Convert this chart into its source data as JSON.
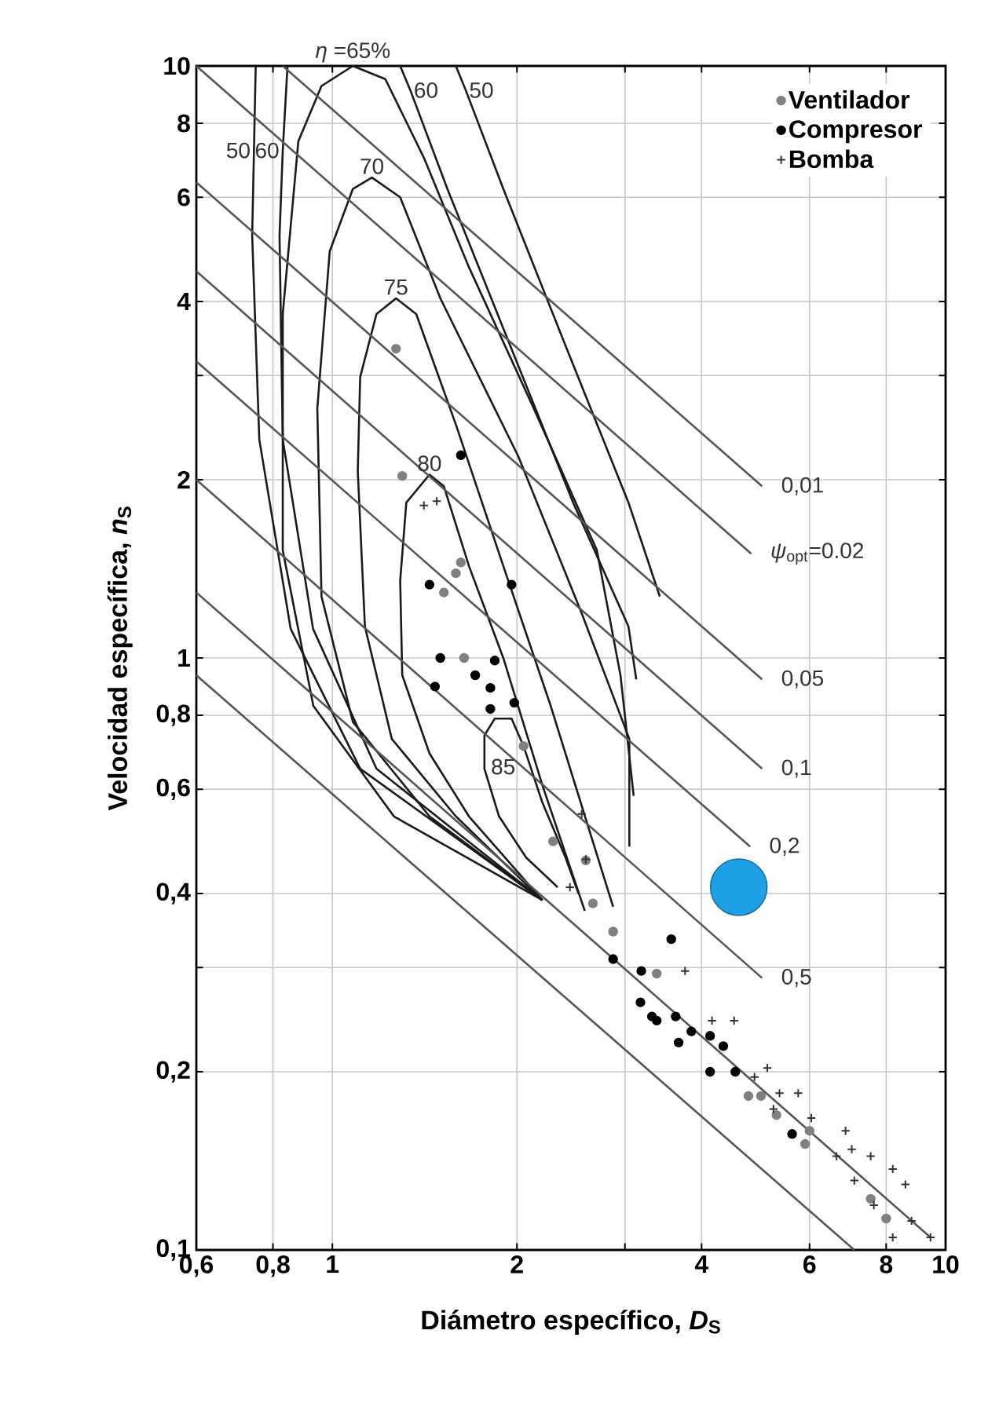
{
  "chart_data": {
    "type": "scatter",
    "xlabel": "Diámetro específico, *D*$_{S}$",
    "ylabel": "Velocidad específica, *n*$_{S}$",
    "log": "xy",
    "grid": true,
    "legend": "top right",
    "xlim": [
      0.6,
      10
    ],
    "ylim": [
      0.1,
      10
    ],
    "xticks": [
      {
        "value": 0.6,
        "label": "0,6"
      },
      {
        "value": 0.8,
        "label": "0,8"
      },
      1,
      2,
      {
        "value": 3,
        "label": null
      },
      4,
      6,
      8,
      10
    ],
    "yticks": [
      {
        "value": 0.1,
        "label": "0,1"
      },
      {
        "value": 0.2,
        "label": "0,2"
      },
      {
        "value": 0.3,
        "label": null
      },
      {
        "value": 0.4,
        "label": "0,4"
      },
      {
        "value": 0.6,
        "label": "0,6"
      },
      {
        "value": 0.8,
        "label": "0,8"
      },
      1,
      2,
      {
        "value": 3,
        "label": null
      },
      4,
      6,
      8,
      10
    ],
    "series": [
      {
        "type": "line",
        "color": "#1a1a1a",
        "marker": "none",
        "line_style": "solid",
        "x": [
          2.2,
          1.11,
          0.855,
          0.76,
          0.74,
          0.745,
          0.75
        ],
        "values": [
          0.39,
          0.65,
          1.12,
          2.34,
          5.17,
          7.2,
          10
        ]
      },
      {
        "type": "line",
        "color": "#1a1a1a",
        "marker": "none",
        "line_style": "solid",
        "x": [
          1.59,
          1.65,
          1.9,
          2.4,
          3.04,
          3.42
        ],
        "values": [
          10,
          9.1,
          6.2,
          3.37,
          1.83,
          1.27
        ]
      },
      {
        "type": "line",
        "color": "#1a1a1a",
        "marker": "none",
        "line_style": "solid",
        "x": [
          2.2,
          1.18,
          0.93,
          0.83,
          0.82,
          0.83,
          0.845
        ],
        "values": [
          0.39,
          0.65,
          1.12,
          2.34,
          5.17,
          7.2,
          10
        ]
      },
      {
        "type": "line",
        "color": "#1a1a1a",
        "marker": "none",
        "line_style": "solid",
        "x": [
          1.29,
          1.34,
          1.54,
          1.95,
          2.47,
          3.04,
          3.13
        ],
        "values": [
          10,
          9.1,
          6.2,
          3.37,
          1.83,
          1.13,
          0.92
        ]
      },
      {
        "type": "line",
        "color": "#1a1a1a",
        "marker": "none",
        "line_style": "solid",
        "x": [
          2.2,
          1.26,
          0.931,
          0.83,
          0.83,
          0.88,
          0.96,
          1.08,
          1.22,
          1.41,
          1.67,
          2.13,
          2.7,
          2.95,
          3.1
        ],
        "values": [
          0.39,
          0.54,
          0.83,
          1.52,
          3.81,
          7.46,
          9.25,
          10,
          9.5,
          7.0,
          4.57,
          2.64,
          1.52,
          0.935,
          0.585
        ]
      },
      {
        "type": "line",
        "color": "#1a1a1a",
        "marker": "none",
        "line_style": "solid",
        "x": [
          2.2,
          1.44,
          1.08,
          0.96,
          0.945,
          0.99,
          1.08,
          1.16,
          1.29,
          1.5,
          2.01,
          2.55,
          3.05,
          3.05
        ],
        "values": [
          0.39,
          0.54,
          0.78,
          1.27,
          2.64,
          4.86,
          6.2,
          6.48,
          6.0,
          4.05,
          2.19,
          1.19,
          0.73,
          0.48
        ]
      },
      {
        "type": "line",
        "color": "#1a1a1a",
        "marker": "none",
        "line_style": "solid",
        "x": [
          2.2,
          1.59,
          1.25,
          1.13,
          1.1,
          1.11,
          1.18,
          1.27,
          1.37,
          1.59,
          1.9,
          2.27,
          2.63,
          2.87
        ],
        "values": [
          0.39,
          0.54,
          0.73,
          1.13,
          2.07,
          2.98,
          3.81,
          4.05,
          3.81,
          2.48,
          1.43,
          0.83,
          0.508,
          0.38
        ]
      },
      {
        "type": "line",
        "color": "#1a1a1a",
        "marker": "none",
        "line_style": "solid",
        "x": [
          2.2,
          1.67,
          1.44,
          1.3,
          1.29,
          1.32,
          1.44,
          1.52,
          1.67,
          1.9,
          2.2,
          2.58
        ],
        "values": [
          0.39,
          0.54,
          0.69,
          0.935,
          1.35,
          1.83,
          2.04,
          1.95,
          1.43,
          1.0,
          0.61,
          0.374
        ]
      },
      {
        "type": "line",
        "color": "#1a1a1a",
        "marker": "none",
        "line_style": "solid",
        "x": [
          2.33,
          2.07,
          1.87,
          1.77,
          1.77,
          1.84,
          1.96,
          2.05,
          2.2,
          2.4,
          2.52
        ],
        "values": [
          0.41,
          0.46,
          0.54,
          0.65,
          0.74,
          0.79,
          0.79,
          0.71,
          0.57,
          0.46,
          0.4
        ]
      },
      {
        "type": "line",
        "color": "#555555",
        "marker": "none",
        "line_style": "solid",
        "x": [
          0.83,
          5.02
        ],
        "values": [
          10,
          1.95
        ]
      },
      {
        "type": "line",
        "color": "#555555",
        "marker": "none",
        "line_style": "solid",
        "x": [
          0.6,
          4.82
        ],
        "values": [
          10,
          1.5
        ]
      },
      {
        "type": "line",
        "color": "#555555",
        "marker": "none",
        "line_style": "solid",
        "x": [
          0.6,
          5.02
        ],
        "values": [
          6.36,
          0.92
        ]
      },
      {
        "type": "line",
        "color": "#555555",
        "marker": "none",
        "line_style": "solid",
        "x": [
          0.6,
          5.02
        ],
        "values": [
          4.5,
          0.65
        ]
      },
      {
        "type": "line",
        "color": "#555555",
        "marker": "none",
        "line_style": "solid",
        "x": [
          0.6,
          4.8
        ],
        "values": [
          3.17,
          0.48
        ]
      },
      {
        "type": "line",
        "color": "#555555",
        "marker": "none",
        "line_style": "solid",
        "x": [
          0.6,
          5.02
        ],
        "values": [
          2.0,
          0.288
        ]
      },
      {
        "type": "line",
        "color": "#555555",
        "marker": "none",
        "line_style": "solid",
        "x": [
          0.6,
          9.45
        ],
        "values": [
          1.29,
          0.105
        ]
      },
      {
        "type": "line",
        "color": "#555555",
        "marker": "none",
        "line_style": "solid",
        "x": [
          0.6,
          7.1
        ],
        "values": [
          0.935,
          0.1
        ]
      },
      {
        "name": "Ventilador",
        "color": "#808080",
        "marker": "circle",
        "x": [
          1.27,
          1.3,
          1.62,
          1.59,
          1.52,
          1.64,
          2.05,
          2.29,
          2.59,
          2.66,
          2.87,
          3.38,
          4.77,
          5.0,
          5.3,
          5.9,
          6.0,
          7.55,
          8.0
        ],
        "values": [
          3.33,
          2.03,
          1.45,
          1.39,
          1.29,
          1.0,
          0.71,
          0.49,
          0.455,
          0.385,
          0.345,
          0.293,
          0.182,
          0.182,
          0.169,
          0.151,
          0.159,
          0.122,
          0.113
        ]
      },
      {
        "name": "Compresor",
        "color": "#000000",
        "marker": "circle",
        "x": [
          1.62,
          1.44,
          1.96,
          1.5,
          1.84,
          1.71,
          1.47,
          1.81,
          1.98,
          1.81,
          2.87,
          3.57,
          3.19,
          3.18,
          3.32,
          3.63,
          3.85,
          3.67,
          4.13,
          4.34,
          4.13,
          4.54,
          5.62,
          3.38
        ],
        "values": [
          2.2,
          1.33,
          1.33,
          1.0,
          0.99,
          0.935,
          0.895,
          0.89,
          0.84,
          0.82,
          0.31,
          0.335,
          0.296,
          0.262,
          0.248,
          0.248,
          0.234,
          0.224,
          0.23,
          0.221,
          0.2,
          0.2,
          0.157,
          0.244
        ]
      },
      {
        "name": "Bomba",
        "color": "#333333",
        "marker": "cross",
        "x": [
          1.41,
          1.48,
          2.55,
          2.59,
          2.44,
          3.76,
          4.16,
          4.52,
          4.88,
          5.12,
          5.36,
          5.75,
          5.24,
          6.04,
          6.87,
          7.03,
          7.55,
          8.2,
          8.6,
          6.64,
          7.1,
          7.64,
          8.2,
          8.8,
          9.45
        ],
        "values": [
          1.81,
          1.84,
          0.545,
          0.457,
          0.41,
          0.296,
          0.244,
          0.244,
          0.196,
          0.203,
          0.184,
          0.184,
          0.173,
          0.167,
          0.159,
          0.148,
          0.144,
          0.137,
          0.129,
          0.144,
          0.131,
          0.119,
          0.105,
          0.112,
          0.105
        ]
      },
      {
        "type": "bubble",
        "color": "#1ea0e6",
        "marker": "circle",
        "x": [
          4.6
        ],
        "values": [
          0.41
        ],
        "sizes": [
          1
        ]
      }
    ],
    "annotations": [
      {
        "text": "*η* =65%",
        "x": 1.08,
        "y": 10
      },
      {
        "text": "50",
        "x": 0.745,
        "y": 7.2
      },
      {
        "text": "60",
        "x": 0.83,
        "y": 7.2
      },
      {
        "text": "60",
        "x": 1.34,
        "y": 9.1
      },
      {
        "text": "50",
        "x": 1.65,
        "y": 9.1
      },
      {
        "text": "70",
        "x": 1.16,
        "y": 6.48
      },
      {
        "text": "75",
        "x": 1.27,
        "y": 4.05
      },
      {
        "text": "80",
        "x": 1.44,
        "y": 2.04
      },
      {
        "text": "85",
        "x": 2.05,
        "y": 0.71
      },
      {
        "text": "0,01",
        "x": 5.02,
        "y": 1.95
      },
      {
        "text": "*ψ*$_{opt}$=0.02",
        "x": 4.82,
        "y": 1.5
      },
      {
        "text": "0,05",
        "x": 5.02,
        "y": 0.92
      },
      {
        "text": "0,1",
        "x": 5.02,
        "y": 0.65
      },
      {
        "text": "0,2",
        "x": 4.8,
        "y": 0.48
      },
      {
        "text": "0,5",
        "x": 5.02,
        "y": 0.288
      }
    ]
  }
}
